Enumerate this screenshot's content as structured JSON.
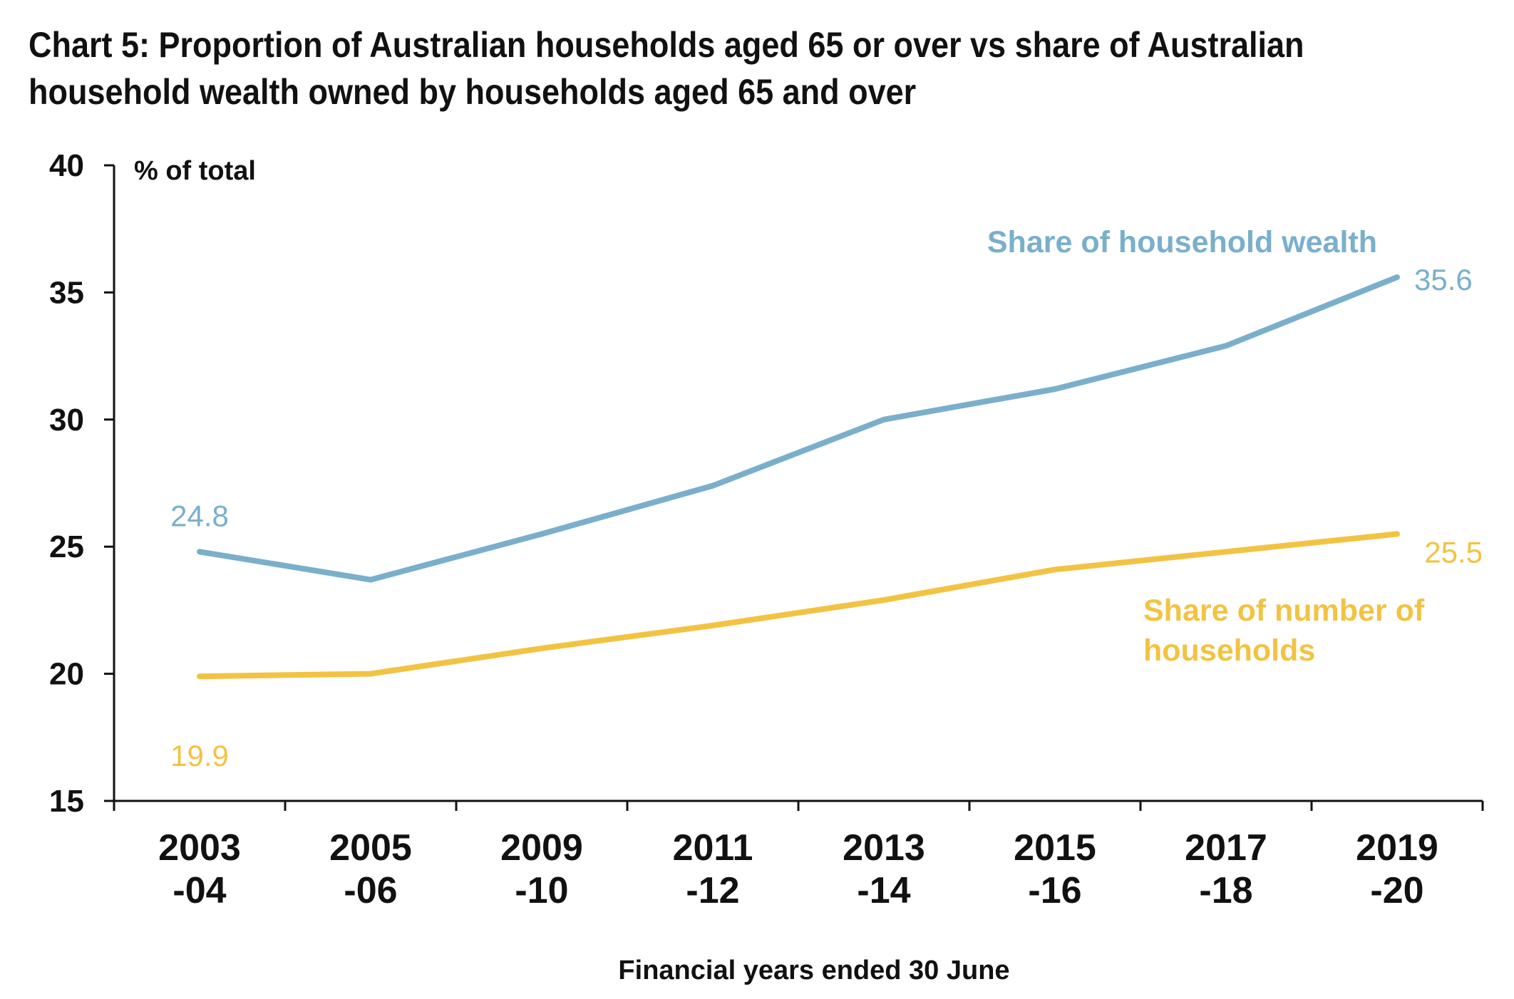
{
  "chart_data": {
    "type": "line",
    "title": "Chart 5: Proportion of Australian households aged 65 or over vs share of Australian household wealth owned by households aged 65 and over",
    "ylabel": "% of total",
    "xlabel": "Financial years ended 30 June",
    "ylim": [
      15,
      40
    ],
    "yticks": [
      "15",
      "20",
      "25",
      "30",
      "35",
      "40"
    ],
    "categories": [
      [
        "2003",
        "-04"
      ],
      [
        "2005",
        "-06"
      ],
      [
        "2009",
        "-10"
      ],
      [
        "2011",
        "-12"
      ],
      [
        "2013",
        "-14"
      ],
      [
        "2015",
        "-16"
      ],
      [
        "2017",
        "-18"
      ],
      [
        "2019",
        "-20"
      ]
    ],
    "grid": false,
    "series": [
      {
        "name": "Share of household wealth",
        "color": "#7aafcc",
        "values": [
          24.8,
          23.7,
          25.5,
          27.4,
          30.0,
          31.2,
          32.9,
          35.6
        ],
        "end_labels": {
          "first": "24.8",
          "last": "35.6"
        }
      },
      {
        "name": "Share of number of households",
        "name_lines": [
          "Share of number of",
          "households"
        ],
        "color": "#f2c343",
        "values": [
          19.9,
          20.0,
          21.0,
          21.9,
          22.9,
          24.1,
          24.8,
          25.5
        ],
        "end_labels": {
          "first": "19.9",
          "last": "25.5"
        }
      }
    ]
  }
}
